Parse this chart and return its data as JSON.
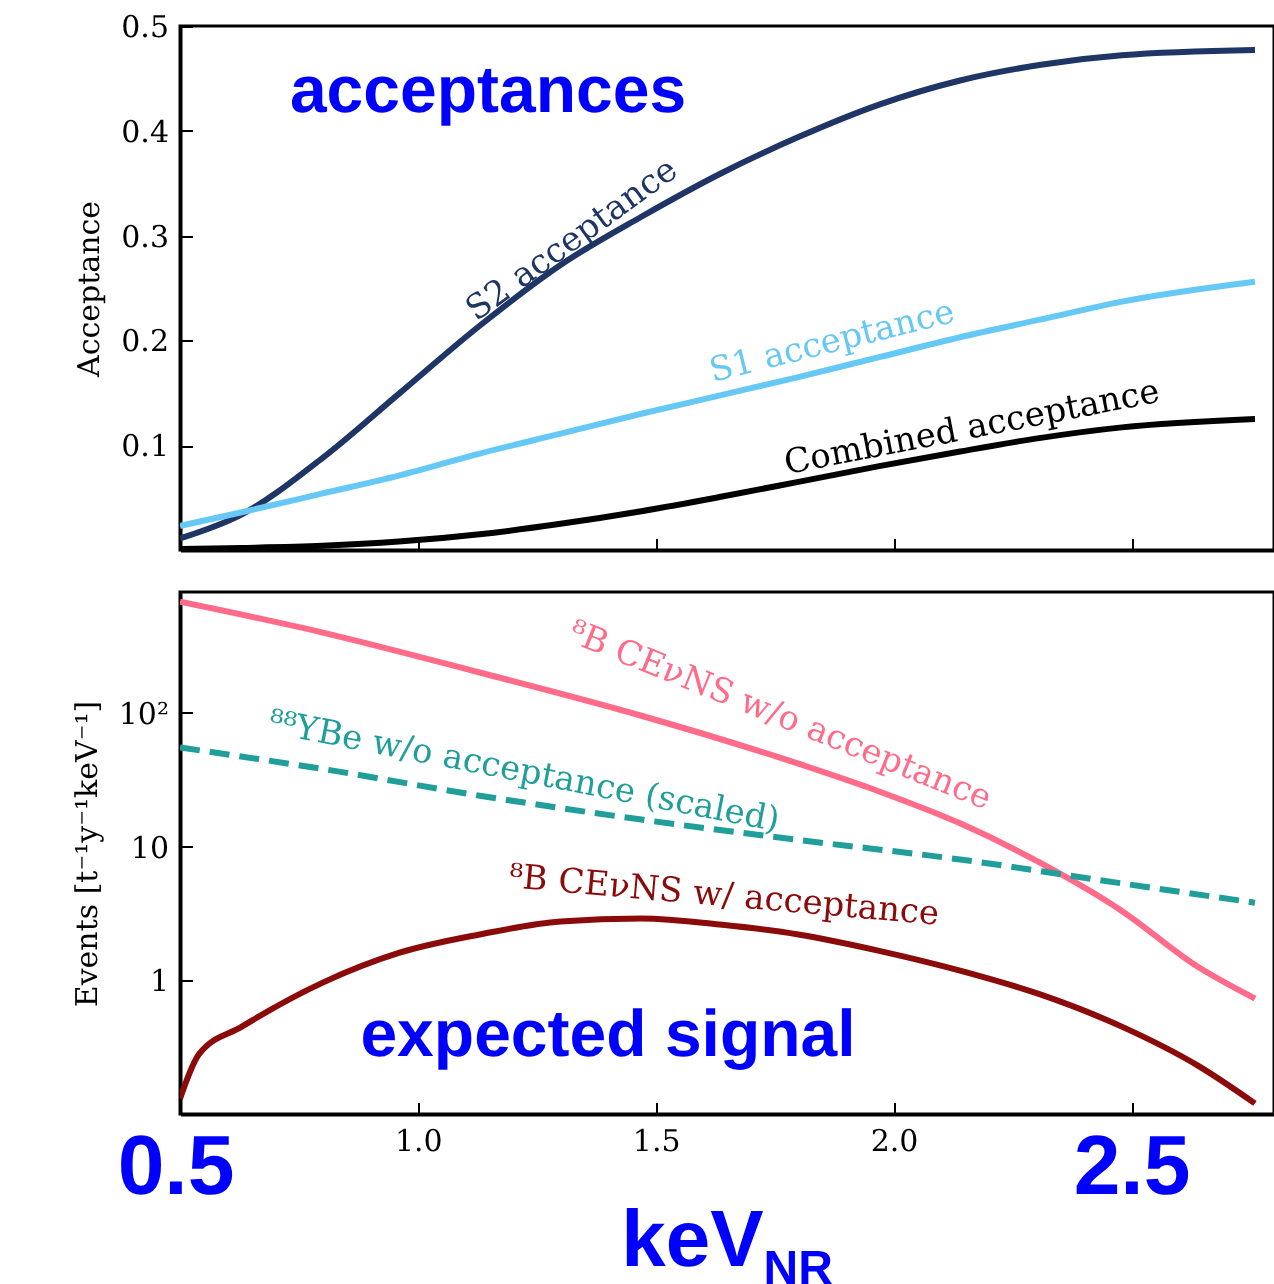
{
  "chart_data": [
    {
      "type": "line",
      "ylabel": "Acceptance",
      "annotations": [
        "acceptances"
      ],
      "xlim": [
        0.5,
        2.8
      ],
      "ylim": [
        0,
        0.5
      ],
      "xticks": [
        0.5,
        1,
        1.5,
        2,
        2.5
      ],
      "yticks": [
        0.1,
        0.2,
        0.3,
        0.4,
        0.5
      ],
      "tick_labels": "y",
      "x": [
        0.5,
        0.63,
        0.8,
        0.96,
        1.13,
        1.3,
        1.47,
        1.64,
        1.8,
        1.97,
        2.14,
        2.31,
        2.48,
        2.76
      ],
      "series": [
        {
          "name": "S2 acceptance",
          "color": "#1f3566",
          "values": [
            0.011,
            0.034,
            0.088,
            0.149,
            0.214,
            0.272,
            0.318,
            0.36,
            0.394,
            0.425,
            0.448,
            0.463,
            0.472,
            0.477
          ]
        },
        {
          "name": "S1 acceptance",
          "color": "#66c8f5",
          "values": [
            0.023,
            0.036,
            0.054,
            0.071,
            0.092,
            0.111,
            0.13,
            0.148,
            0.165,
            0.184,
            0.203,
            0.22,
            0.237,
            0.256
          ]
        },
        {
          "name": "Combined acceptance",
          "color": "#000000",
          "values": [
            0.001,
            0.002,
            0.004,
            0.008,
            0.015,
            0.025,
            0.037,
            0.051,
            0.065,
            0.08,
            0.094,
            0.107,
            0.117,
            0.125
          ]
        }
      ]
    },
    {
      "type": "line",
      "ylabel": "Events [t⁻¹y⁻¹keV⁻¹]",
      "xlabel": "keV$_{NR}$",
      "annotations": [
        "expected signal",
        "0.5",
        "2.5"
      ],
      "xlim": [
        0.5,
        2.8
      ],
      "ylim": [
        0.1,
        800
      ],
      "log": "y",
      "xticks": [
        {
          "value": 0.5,
          "label": null
        },
        {
          "value": 1,
          "label": "1.0"
        },
        {
          "value": 1.5,
          "label": "1.5"
        },
        {
          "value": 2,
          "label": "2.0"
        },
        {
          "value": 2.5,
          "label": null
        }
      ],
      "yticks": [
        1,
        10,
        {
          "value": 100,
          "label": "10²"
        }
      ],
      "series": [
        {
          "name": "⁸B CEνNS w/o acceptance",
          "color": "#ff6b88",
          "x": [
            0.5,
            0.8,
            1.13,
            1.47,
            1.8,
            1.97,
            2.14,
            2.31,
            2.48,
            2.64,
            2.76
          ],
          "values": [
            676,
            398,
            200,
            95,
            41.6,
            25.8,
            14.9,
            7.5,
            3.3,
            1.26,
            0.73
          ]
        },
        {
          "name": "⁸⁸YBe w/o acceptance (scaled)",
          "color": "#1f9e9a",
          "line_style": "dashed",
          "x": [
            0.5,
            0.8,
            1.13,
            1.47,
            1.8,
            2.14,
            2.48,
            2.76
          ],
          "values": [
            55,
            38,
            24,
            15.9,
            11.2,
            8,
            5.3,
            3.8
          ]
        },
        {
          "name": "⁸B CEνNS w/ acceptance",
          "color": "#8b0a0a",
          "x": [
            0.5,
            0.54,
            0.63,
            0.8,
            0.96,
            1.13,
            1.3,
            1.47,
            1.64,
            1.8,
            1.97,
            2.14,
            2.31,
            2.48,
            2.64,
            2.76
          ],
          "values": [
            0.13,
            0.28,
            0.45,
            0.96,
            1.6,
            2.2,
            2.75,
            2.9,
            2.6,
            2.2,
            1.66,
            1.18,
            0.78,
            0.45,
            0.23,
            0.12
          ]
        }
      ]
    }
  ]
}
